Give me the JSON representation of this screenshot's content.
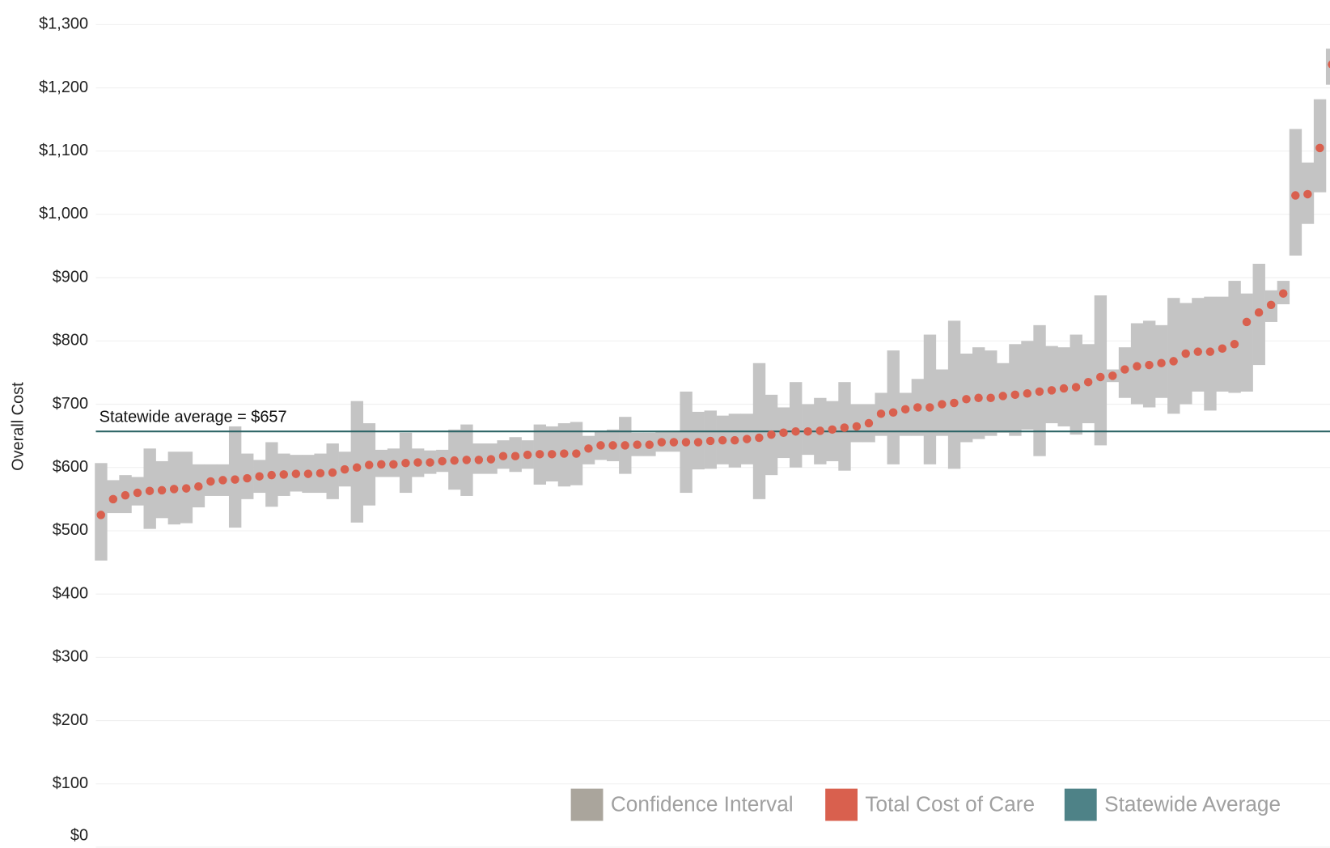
{
  "chart_data": {
    "type": "dot_interval",
    "y_label": "Overall Cost",
    "ylim": [
      0,
      1300
    ],
    "yticks": [
      {
        "value": 0,
        "label": "$0"
      },
      {
        "value": 100,
        "label": "$100"
      },
      {
        "value": 200,
        "label": "$200"
      },
      {
        "value": 300,
        "label": "$300"
      },
      {
        "value": 400,
        "label": "$400"
      },
      {
        "value": 500,
        "label": "$500"
      },
      {
        "value": 600,
        "label": "$600"
      },
      {
        "value": 700,
        "label": "$700"
      },
      {
        "value": 800,
        "label": "$800"
      },
      {
        "value": 900,
        "label": "$900"
      },
      {
        "value": 1000,
        "label": "$1,000"
      },
      {
        "value": 1100,
        "label": "$1,100"
      },
      {
        "value": 1200,
        "label": "$1,200"
      },
      {
        "value": 1300,
        "label": "$1,300"
      }
    ],
    "grid": true,
    "interval": {
      "name": "Confidence Interval",
      "color": "#c4c4c4",
      "legend_color": "#aaa59c",
      "low": [
        453,
        528,
        528,
        540,
        503,
        520,
        510,
        512,
        537,
        555,
        555,
        505,
        550,
        560,
        538,
        555,
        562,
        560,
        560,
        550,
        570,
        513,
        540,
        585,
        585,
        560,
        585,
        590,
        593,
        565,
        555,
        590,
        590,
        598,
        593,
        598,
        573,
        578,
        570,
        572,
        605,
        612,
        610,
        590,
        618,
        618,
        625,
        625,
        560,
        597,
        598,
        605,
        600,
        605,
        550,
        588,
        615,
        600,
        620,
        605,
        610,
        595,
        640,
        640,
        650,
        605,
        650,
        650,
        605,
        650,
        598,
        640,
        645,
        650,
        655,
        650,
        660,
        618,
        670,
        665,
        652,
        670,
        635,
        735,
        710,
        700,
        695,
        710,
        685,
        700,
        720,
        690,
        720,
        718,
        720,
        762,
        830,
        858,
        935,
        985,
        1035,
        1205
      ],
      "high": [
        607,
        580,
        588,
        585,
        630,
        610,
        625,
        625,
        605,
        605,
        605,
        665,
        622,
        612,
        640,
        622,
        620,
        620,
        622,
        638,
        625,
        705,
        670,
        628,
        630,
        655,
        630,
        627,
        628,
        660,
        668,
        638,
        638,
        643,
        648,
        643,
        668,
        665,
        670,
        672,
        650,
        658,
        660,
        680,
        655,
        655,
        657,
        657,
        720,
        688,
        690,
        682,
        685,
        685,
        765,
        715,
        695,
        735,
        700,
        710,
        705,
        735,
        700,
        700,
        718,
        785,
        718,
        740,
        810,
        755,
        832,
        780,
        790,
        785,
        765,
        795,
        800,
        825,
        792,
        790,
        810,
        795,
        872,
        755,
        790,
        828,
        832,
        825,
        868,
        860,
        868,
        870,
        870,
        895,
        875,
        922,
        880,
        895,
        1135,
        1082,
        1182,
        1262
      ]
    },
    "series": [
      {
        "name": "Total Cost of Care",
        "color": "#d9604e",
        "values": [
          525,
          550,
          556,
          560,
          563,
          564,
          566,
          567,
          570,
          578,
          580,
          581,
          583,
          586,
          588,
          589,
          590,
          590,
          591,
          592,
          597,
          600,
          604,
          605,
          605,
          607,
          608,
          608,
          610,
          611,
          612,
          612,
          613,
          618,
          618,
          620,
          621,
          621,
          622,
          622,
          630,
          635,
          635,
          635,
          636,
          636,
          640,
          640,
          640,
          640,
          642,
          643,
          643,
          645,
          647,
          652,
          655,
          657,
          657,
          658,
          660,
          663,
          665,
          670,
          685,
          687,
          692,
          695,
          695,
          700,
          702,
          708,
          710,
          710,
          713,
          715,
          717,
          720,
          722,
          725,
          727,
          735,
          743,
          745,
          755,
          760,
          762,
          765,
          768,
          780,
          783,
          783,
          788,
          795,
          830,
          845,
          857,
          875,
          1030,
          1032,
          1105,
          1237
        ]
      }
    ],
    "reference_line": {
      "name": "Statewide Average",
      "value": 657,
      "label": "Statewide average = $657",
      "color": "#2d6466",
      "legend_color": "#4e8287"
    }
  }
}
